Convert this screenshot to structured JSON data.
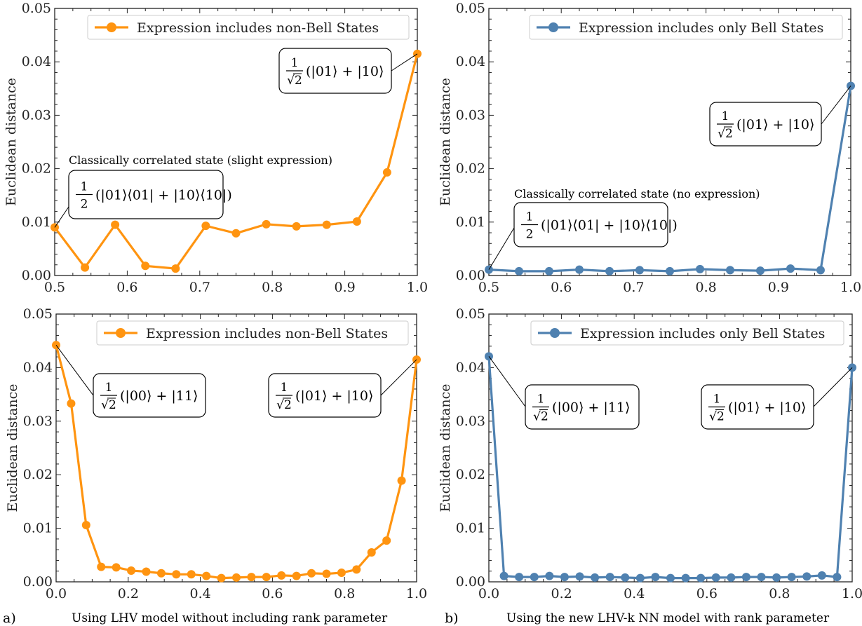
{
  "colors": {
    "orange": "#ff9410",
    "blue": "#4f81b0"
  },
  "captions": {
    "a": {
      "letter": "a)",
      "text": "Using LHV model without including rank parameter"
    },
    "b": {
      "letter": "b)",
      "text": "Using the new LHV-k NN model with rank parameter"
    }
  },
  "chart_data": [
    {
      "id": "top-left",
      "type": "line",
      "ylabel": "Euclidean distance",
      "xlim": [
        0.5,
        1.0
      ],
      "ylim": [
        0,
        0.05
      ],
      "xticks": [
        0.5,
        0.6,
        0.7,
        0.8,
        0.9,
        1.0
      ],
      "xtick_labels": [
        "0.5",
        "0.6",
        "0.7",
        "0.8",
        "0.9",
        "1.0"
      ],
      "yticks": [
        0,
        0.01,
        0.02,
        0.03,
        0.04,
        0.05
      ],
      "ytick_labels": [
        "0.00",
        "0.01",
        "0.02",
        "0.03",
        "0.04",
        "0.05"
      ],
      "legend": "top-right",
      "series": [
        {
          "name": "Expression includes non-Bell States",
          "color": "#ff9410",
          "x": [
            0.5,
            0.5417,
            0.5833,
            0.625,
            0.6667,
            0.7083,
            0.75,
            0.7917,
            0.8333,
            0.875,
            0.9167,
            0.9583,
            1.0
          ],
          "y": [
            0.009,
            0.0015,
            0.0095,
            0.0018,
            0.0013,
            0.0093,
            0.0079,
            0.0096,
            0.0092,
            0.0095,
            0.0101,
            0.0193,
            0.0415
          ]
        }
      ],
      "annotations": [
        {
          "note": "Classically correlated state (slight expression)",
          "frac": "1/2",
          "ket": "(|01⟩⟨01| + |10⟩⟨10|)",
          "target": [
            0.5,
            0.009
          ]
        },
        {
          "frac": "1/√2",
          "ket": "(|01⟩ + |10⟩",
          "target": [
            1.0,
            0.0415
          ]
        }
      ]
    },
    {
      "id": "top-right",
      "type": "line",
      "ylabel": "Euclidean distance",
      "xlim": [
        0.5,
        1.0
      ],
      "ylim": [
        0,
        0.05
      ],
      "xticks": [
        0.5,
        0.6,
        0.7,
        0.8,
        0.9,
        1.0
      ],
      "xtick_labels": [
        "0.5",
        "0.6",
        "0.7",
        "0.8",
        "0.9",
        "1.0"
      ],
      "yticks": [
        0,
        0.01,
        0.02,
        0.03,
        0.04,
        0.05
      ],
      "ytick_labels": [
        "0.00",
        "0.01",
        "0.02",
        "0.03",
        "0.04",
        "0.05"
      ],
      "legend": "top-right",
      "series": [
        {
          "name": "Expression includes only Bell States",
          "color": "#4f81b0",
          "x": [
            0.5,
            0.5417,
            0.5833,
            0.625,
            0.6667,
            0.7083,
            0.75,
            0.7917,
            0.8333,
            0.875,
            0.9167,
            0.9583,
            1.0
          ],
          "y": [
            0.0011,
            0.0008,
            0.0008,
            0.0011,
            0.0008,
            0.001,
            0.0008,
            0.0012,
            0.001,
            0.0009,
            0.0013,
            0.001,
            0.0355
          ]
        }
      ],
      "annotations": [
        {
          "note": "Classically correlated state (no expression)",
          "frac": "1/2",
          "ket": "(|01⟩⟨01| + |10⟩⟨10|)",
          "target": [
            0.5,
            0.0011
          ]
        },
        {
          "frac": "1/√2",
          "ket": "(|01⟩ + |10⟩",
          "target": [
            1.0,
            0.0355
          ]
        }
      ]
    },
    {
      "id": "bottom-left",
      "type": "line",
      "ylabel": "Euclidean distance",
      "xlim": [
        0.0,
        1.0
      ],
      "ylim": [
        0,
        0.05
      ],
      "xticks": [
        0.0,
        0.2,
        0.4,
        0.6,
        0.8,
        1.0
      ],
      "xtick_labels": [
        "0.0",
        "0.2",
        "0.4",
        "0.6",
        "0.8",
        "1.0"
      ],
      "yticks": [
        0,
        0.01,
        0.02,
        0.03,
        0.04,
        0.05
      ],
      "ytick_labels": [
        "0.00",
        "0.01",
        "0.02",
        "0.03",
        "0.04",
        "0.05"
      ],
      "legend": "top-right",
      "series": [
        {
          "name": "Expression includes non-Bell States",
          "color": "#ff9410",
          "x": [
            0.0,
            0.0417,
            0.0833,
            0.125,
            0.1667,
            0.2083,
            0.25,
            0.2917,
            0.3333,
            0.375,
            0.4167,
            0.4583,
            0.5,
            0.5417,
            0.5833,
            0.625,
            0.6667,
            0.7083,
            0.75,
            0.7917,
            0.8333,
            0.875,
            0.9167,
            0.9583,
            1.0
          ],
          "y": [
            0.0442,
            0.0333,
            0.0106,
            0.0028,
            0.0027,
            0.0021,
            0.0019,
            0.0016,
            0.0014,
            0.0014,
            0.0011,
            0.0007,
            0.0008,
            0.0009,
            0.0009,
            0.0012,
            0.0011,
            0.0016,
            0.0015,
            0.0017,
            0.0023,
            0.0055,
            0.0077,
            0.0189,
            0.0415
          ]
        }
      ],
      "annotations": [
        {
          "frac": "1/√2",
          "ket": "(|00⟩ + |11⟩",
          "target": [
            0.0,
            0.0442
          ]
        },
        {
          "frac": "1/√2",
          "ket": "(|01⟩ + |10⟩",
          "target": [
            1.0,
            0.0415
          ]
        }
      ]
    },
    {
      "id": "bottom-right",
      "type": "line",
      "ylabel": "Euclidean distance",
      "xlim": [
        0.0,
        1.0
      ],
      "ylim": [
        0,
        0.05
      ],
      "xticks": [
        0.0,
        0.2,
        0.4,
        0.6,
        0.8,
        1.0
      ],
      "xtick_labels": [
        "0.0",
        "0.2",
        "0.4",
        "0.6",
        "0.8",
        "1.0"
      ],
      "yticks": [
        0,
        0.01,
        0.02,
        0.03,
        0.04,
        0.05
      ],
      "ytick_labels": [
        "0.00",
        "0.01",
        "0.02",
        "0.03",
        "0.04",
        "0.05"
      ],
      "legend": "top-right",
      "series": [
        {
          "name": "Expression includes only Bell States",
          "color": "#4f81b0",
          "x": [
            0.0,
            0.0417,
            0.0833,
            0.125,
            0.1667,
            0.2083,
            0.25,
            0.2917,
            0.3333,
            0.375,
            0.4167,
            0.4583,
            0.5,
            0.5417,
            0.5833,
            0.625,
            0.6667,
            0.7083,
            0.75,
            0.7917,
            0.8333,
            0.875,
            0.9167,
            0.9583,
            1.0
          ],
          "y": [
            0.0421,
            0.0011,
            0.0009,
            0.0009,
            0.0011,
            0.0009,
            0.001,
            0.0008,
            0.0009,
            0.0008,
            0.0007,
            0.0009,
            0.0007,
            0.0007,
            0.0007,
            0.0008,
            0.0008,
            0.0009,
            0.0009,
            0.0008,
            0.0009,
            0.001,
            0.0012,
            0.0009,
            0.04
          ]
        }
      ],
      "annotations": [
        {
          "frac": "1/√2",
          "ket": "(|00⟩ + |11⟩",
          "target": [
            0.0,
            0.0421
          ]
        },
        {
          "frac": "1/√2",
          "ket": "(|01⟩ + |10⟩",
          "target": [
            1.0,
            0.04
          ]
        }
      ]
    }
  ]
}
